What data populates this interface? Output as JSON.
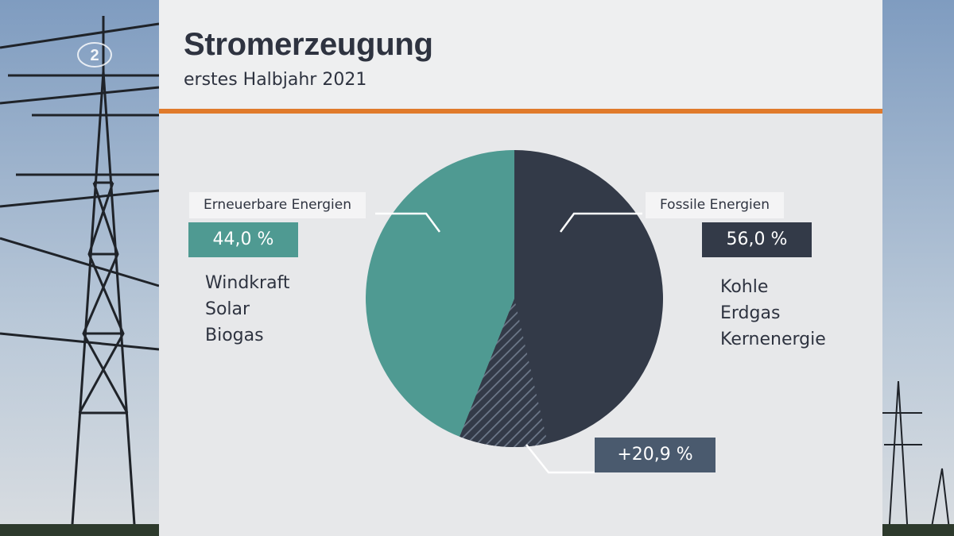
{
  "header": {
    "title": "Stromerzeugung",
    "subtitle": "erstes Halbjahr 2021"
  },
  "colors": {
    "renewable": "#4f9a92",
    "fossil": "#333a48",
    "accent": "#e07a2b",
    "change_box": "#4a5a6e"
  },
  "renewable": {
    "label": "Erneuerbare Energien",
    "value_text": "44,0 %",
    "sources": [
      "Windkraft",
      "Solar",
      "Biogas"
    ]
  },
  "fossil": {
    "label": "Fossile Energien",
    "value_text": "56,0 %",
    "sources": [
      "Kohle",
      "Erdgas",
      "Kernenergie"
    ]
  },
  "change": {
    "value_text": "+20,9 %"
  },
  "logo_text": "2",
  "chart_data": {
    "type": "pie",
    "title": "Stromerzeugung",
    "subtitle": "erstes Halbjahr 2021",
    "slices": [
      {
        "name": "Fossile Energien",
        "value": 56.0,
        "color": "#333a48"
      },
      {
        "name": "Erneuerbare Energien",
        "value": 44.0,
        "color": "#4f9a92"
      }
    ],
    "highlight": {
      "of": "Fossile Energien",
      "label": "+20,9 %",
      "value": 9.6,
      "pattern": "hatched"
    },
    "start_angle_deg": 0,
    "direction": "clockwise"
  }
}
